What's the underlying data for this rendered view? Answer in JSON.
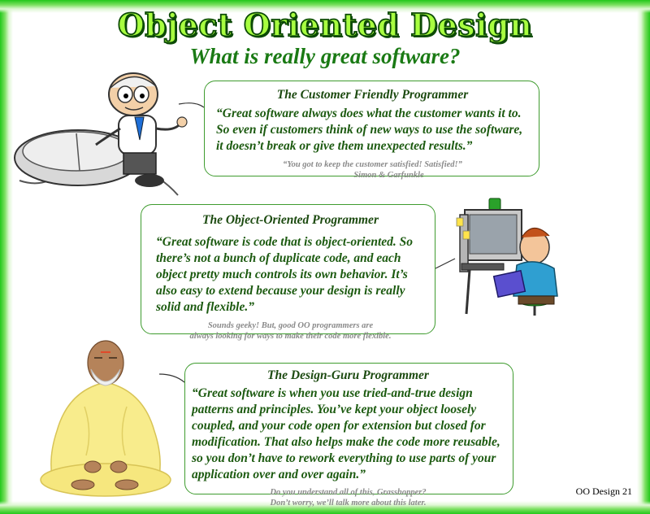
{
  "slide": {
    "title": "Object Oriented Design",
    "subtitle": "What is really great software?",
    "footer": "OO Design 21"
  },
  "boxes": [
    {
      "title": "The Customer Friendly Programmer",
      "quote": "“Great software always does what the customer wants it to.  So even if customers think of new ways to use the software, it doesn’t break or give them unexpected results.”",
      "aside_lines": [
        "“You got to keep the customer satisfied! Satisfied!”",
        "Simon & Garfunkle"
      ]
    },
    {
      "title": "The Object-Oriented Programmer",
      "quote": "“Great software is code that is object-oriented.  So there’s not a bunch of duplicate code, and each object pretty much controls its own behavior.  It’s also easy to extend because your design is really solid and flexible.”",
      "aside_lines": [
        "Sounds geeky! But, good OO programmers are",
        "always looking for ways to make their code more flexible."
      ]
    },
    {
      "title": "The Design-Guru Programmer",
      "quote": "“Great software is when you use tried-and-true design patterns and principles.   You’ve kept your object loosely coupled, and your code open for extension but closed for modification.  That also helps make the code more reusable, so you don’t have to rework everything to use parts of your application over and over again.”",
      "aside_lines": [
        "Do you understand all of this, Grasshopper?",
        "Don’t worry, we’ll talk more about this later."
      ]
    }
  ],
  "images": {
    "customer_programmer": "cartoon-programmer-with-mouse",
    "oo_programmer": "cartoon-programmer-at-computer",
    "guru_programmer": "meditating-guru"
  },
  "colors": {
    "frame_green": "#22c81a",
    "title_fill": "#a8ff40",
    "subtitle": "#1a7a14",
    "box_border": "#3f9c2f",
    "aside_gray": "#8a8a8a"
  }
}
